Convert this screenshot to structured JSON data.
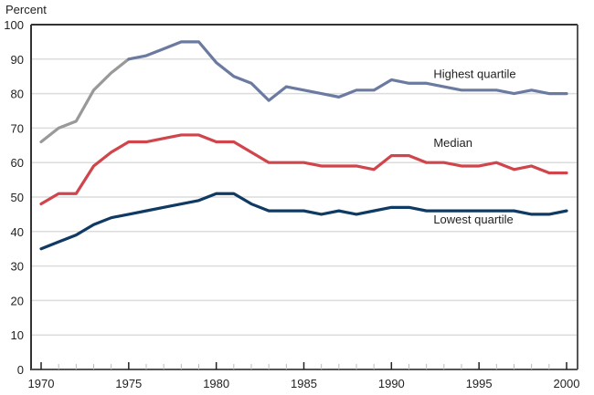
{
  "chart_data": {
    "type": "line",
    "title": "",
    "ylabel": "Percent",
    "xlabel": "",
    "ylim": [
      0,
      100
    ],
    "xlim": [
      1970,
      2000
    ],
    "yticks": [
      0,
      10,
      20,
      30,
      40,
      50,
      60,
      70,
      80,
      90,
      100
    ],
    "xticks": [
      1970,
      1975,
      1980,
      1985,
      1990,
      1995,
      2000
    ],
    "grid": true,
    "legend": "inline labels",
    "x": [
      1970,
      1971,
      1972,
      1973,
      1974,
      1975,
      1976,
      1977,
      1978,
      1979,
      1980,
      1981,
      1982,
      1983,
      1984,
      1985,
      1986,
      1987,
      1988,
      1989,
      1990,
      1991,
      1992,
      1993,
      1994,
      1995,
      1996,
      1997,
      1998,
      1999,
      2000
    ],
    "series": [
      {
        "name": "Highest quartile",
        "color": "#6b7aa1",
        "early_color": "#999999",
        "early_until": 1975,
        "values": [
          66,
          70,
          72,
          81,
          86,
          90,
          91,
          93,
          95,
          95,
          89,
          85,
          83,
          78,
          82,
          81,
          80,
          79,
          81,
          81,
          84,
          83,
          83,
          82,
          81,
          81,
          81,
          80,
          81,
          80,
          80
        ]
      },
      {
        "name": "Median",
        "color": "#d0454c",
        "values": [
          48,
          51,
          51,
          59,
          63,
          66,
          66,
          67,
          68,
          68,
          66,
          66,
          63,
          60,
          60,
          60,
          59,
          59,
          59,
          58,
          62,
          62,
          60,
          60,
          59,
          59,
          60,
          58,
          59,
          57,
          57
        ]
      },
      {
        "name": "Lowest quartile",
        "color": "#0e3a63",
        "values": [
          35,
          37,
          39,
          42,
          44,
          45,
          46,
          47,
          48,
          49,
          51,
          51,
          48,
          46,
          46,
          46,
          45,
          46,
          45,
          46,
          47,
          47,
          46,
          46,
          46,
          46,
          46,
          46,
          45,
          45,
          46
        ]
      }
    ],
    "annotations": [
      {
        "text": "Highest quartile",
        "x": 1992.4,
        "y": 84.5
      },
      {
        "text": "Median",
        "x": 1992.4,
        "y": 64.5
      },
      {
        "text": "Lowest quartile",
        "x": 1992.4,
        "y": 42.3
      }
    ]
  }
}
